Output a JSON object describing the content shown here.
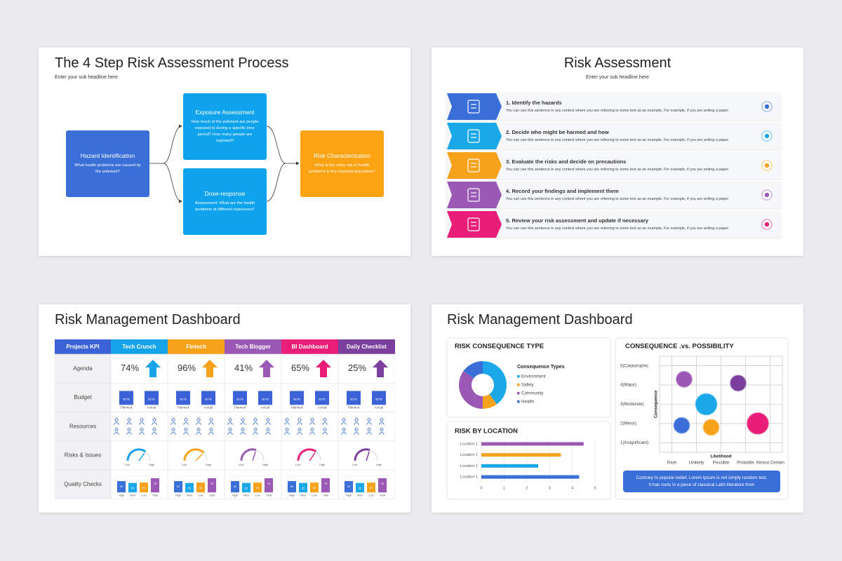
{
  "slide1": {
    "title": "The 4 Step Risk Assessment Process",
    "subtitle": "Enter your sub headline here",
    "boxes": [
      {
        "title": "Hazard Identification",
        "text": "What health problems are caused by the pollutant?"
      },
      {
        "title": "Exposure Assessment",
        "text": "How much of the pollutant are people exposed to during a specific time period? How many people are exposed?"
      },
      {
        "title": "Dose-response",
        "text": "Assessment: What are the health problems at different exposures?"
      },
      {
        "title": "Risk Characterization",
        "text": "What is the extra risk of health problems in the exposed population?"
      }
    ]
  },
  "slide2": {
    "title": "Risk Assessment",
    "subtitle": "Enter your sub headline here",
    "steps": [
      {
        "title": "1. Identify the hazards",
        "text": "You can use this sentence in any context where you are referring to some text as an example. For example, if you are writing a paper"
      },
      {
        "title": "2. Decide who might be harmed and how",
        "text": "You can use this sentence in any context where you are referring to some text as an example. For example, if you are writing a paper"
      },
      {
        "title": "3. Evaluate the risks and decide on precautions",
        "text": "You can use this sentence in any context where you are referring to some text as an example. For example, if you are writing a paper"
      },
      {
        "title": "4. Record your findings and implement them",
        "text": "You can use this sentence in any context where you are referring to some text as an example. For example, if you are writing a paper"
      },
      {
        "title": "5. Review your risk assessment and update if necessary",
        "text": "You can use this sentence in any context where you are referring to some text as an example. For example, if you are writing a paper"
      }
    ]
  },
  "slide3": {
    "title": "Risk Management Dashboard",
    "header": [
      "Projects KPI",
      "Tech Crunch",
      "Fintech",
      "Tech Blogger",
      "BI Dashboard",
      "Daily Checklist"
    ],
    "rows": [
      "Agenda",
      "Budget",
      "Resources",
      "Risks & Issues",
      "Quality Checks"
    ],
    "agenda": [
      "74%",
      "96%",
      "41%",
      "65%",
      "25%"
    ],
    "budget": {
      "categories": [
        "Planned",
        "Actual"
      ],
      "values": [
        [
          27,
          27
        ],
        [
          27,
          27
        ],
        [
          27,
          27
        ],
        [
          27,
          27
        ],
        [
          27,
          27
        ]
      ],
      "value_labels": [
        [
          "$27B",
          "$27B"
        ],
        [
          "$27B",
          "$27B"
        ],
        [
          "$27B",
          "$27B"
        ],
        [
          "$27B",
          "$27B"
        ],
        [
          "$27B",
          "$27B"
        ]
      ]
    },
    "gauges": {
      "labels": [
        "Low",
        "High"
      ],
      "values": [
        70,
        75,
        60,
        70,
        60
      ]
    },
    "quality": {
      "categories": [
        "High",
        "Med",
        "Low",
        "Total"
      ],
      "values": [
        [
          62,
          52,
          54,
          78
        ],
        [
          62,
          52,
          54,
          78
        ],
        [
          62,
          52,
          54,
          78
        ],
        [
          62,
          52,
          54,
          78
        ],
        [
          62,
          52,
          54,
          78
        ]
      ]
    }
  },
  "slide4": {
    "title": "Risk Management Dashboard",
    "note": "Contrary to popular belief, Lorem Ipsum is not simply random text. It has roots in a piece of classical Latin literature from"
  },
  "chart_data": [
    {
      "type": "pie",
      "title": "RISK CONSEQUENCE TYPE",
      "legend_title": "Consequence Types",
      "categories": [
        "Environment",
        "Safety",
        "Community",
        "Health"
      ],
      "values": [
        40,
        10,
        35,
        15
      ],
      "colors": [
        "#1ba8e8",
        "#f7a21b",
        "#9b59b6",
        "#3a6fd8"
      ]
    },
    {
      "type": "bar",
      "orientation": "horizontal",
      "title": "RISK BY LOCATION",
      "categories": [
        "Location 1",
        "Location 1",
        "Location 1",
        "Location 1"
      ],
      "values": [
        4.5,
        3.5,
        2.5,
        4.3
      ],
      "colors": [
        "#9b59b6",
        "#f7a21b",
        "#1ba8e8",
        "#3a6fd8"
      ],
      "xlim": [
        0,
        5
      ],
      "xticks": [
        0,
        1,
        2,
        3,
        4,
        5
      ],
      "grid": true
    },
    {
      "type": "scatter",
      "title": "CONSEQUENCE .vs. POSSIBILITY",
      "xlabel": "Likelihood",
      "ylabel": "Consequence",
      "x": [
        1.5,
        3.7,
        2.4,
        1.4,
        2.6,
        4.5
      ],
      "values": [
        4.3,
        4.1,
        3.0,
        1.9,
        1.8,
        2.0
      ],
      "sizes": [
        12,
        12,
        16,
        12,
        12,
        16
      ],
      "colors": [
        "#9b59b6",
        "#7b3f9e",
        "#1ba8e8",
        "#3a6fd8",
        "#f7a21b",
        "#e91e78"
      ],
      "xlim": [
        0.5,
        5.5
      ],
      "ylim": [
        0.5,
        5.5
      ],
      "xticks": [
        {
          "value": 1,
          "label": "Rare"
        },
        {
          "value": 2,
          "label": "Unlikely"
        },
        {
          "value": 3,
          "label": "Possible"
        },
        {
          "value": 4,
          "label": "Probable"
        },
        {
          "value": 5,
          "label": "Almost Certain"
        }
      ],
      "yticks": [
        {
          "value": 1,
          "label": "1(Insignificant)"
        },
        {
          "value": 2,
          "label": "2(Minor)"
        },
        {
          "value": 3,
          "label": "3(Moderate)"
        },
        {
          "value": 4,
          "label": "4(Major)"
        },
        {
          "value": 5,
          "label": "5(Catastrophic"
        }
      ],
      "grid": true
    }
  ]
}
